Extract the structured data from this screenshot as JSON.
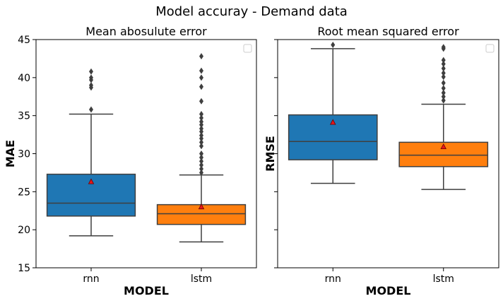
{
  "figure": {
    "suptitle": "Model accuray - Demand data"
  },
  "chart_data": [
    {
      "type": "box",
      "title": "Mean abosulute error",
      "xlabel": "MODEL",
      "ylabel": "MAE",
      "ylim": [
        15,
        45
      ],
      "yticks": [
        15,
        20,
        25,
        30,
        35,
        40,
        45
      ],
      "show_ytick_labels": true,
      "grid": false,
      "legend": "top-right (empty)",
      "categories": [
        "rnn",
        "lstm"
      ],
      "series": [
        {
          "category": "rnn",
          "color": "#1f77b4",
          "q1": 21.8,
          "median": 23.5,
          "q3": 27.3,
          "whisker_low": 19.2,
          "whisker_high": 35.2,
          "mean": 26.3,
          "outliers": [
            35.8,
            38.7,
            39.0,
            39.7,
            40.0,
            40.8
          ]
        },
        {
          "category": "lstm",
          "color": "#ff7f0e",
          "q1": 20.7,
          "median": 22.1,
          "q3": 23.3,
          "whisker_low": 18.4,
          "whisker_high": 27.2,
          "mean": 23.0,
          "outliers": [
            27.5,
            28.0,
            28.5,
            29.0,
            29.5,
            30.0,
            31.0,
            31.5,
            32.0,
            32.4,
            32.9,
            33.3,
            33.8,
            34.2,
            34.7,
            35.2,
            36.9,
            38.8,
            40.0,
            40.9,
            42.8
          ]
        }
      ]
    },
    {
      "type": "box",
      "title": "Root mean squared error",
      "xlabel": "MODEL",
      "ylabel": "RMSE",
      "ylim": [
        15,
        45
      ],
      "yticks": [
        15,
        20,
        25,
        30,
        35,
        40,
        45
      ],
      "show_ytick_labels": false,
      "grid": false,
      "legend": "top-right (empty)",
      "categories": [
        "rnn",
        "lstm"
      ],
      "series": [
        {
          "category": "rnn",
          "color": "#1f77b4",
          "q1": 29.2,
          "median": 31.6,
          "q3": 35.1,
          "whisker_low": 26.1,
          "whisker_high": 43.8,
          "mean": 34.1,
          "outliers": [
            44.3
          ]
        },
        {
          "category": "lstm",
          "color": "#ff7f0e",
          "q1": 28.3,
          "median": 29.8,
          "q3": 31.5,
          "whisker_low": 25.3,
          "whisker_high": 36.5,
          "mean": 30.9,
          "outliers": [
            37.0,
            37.5,
            38.0,
            38.6,
            39.3,
            40.1,
            40.6,
            41.2,
            41.8,
            42.3,
            43.8,
            44.0
          ]
        }
      ]
    }
  ]
}
